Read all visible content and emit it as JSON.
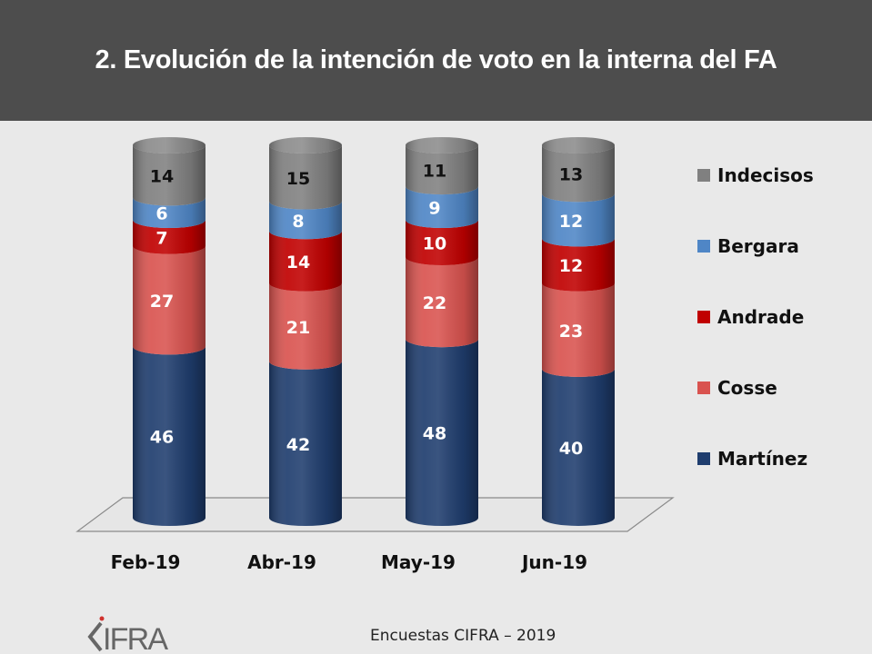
{
  "title": "2.  Evolución de la intención de voto en la interna del FA",
  "source": "Encuestas CIFRA – 2019",
  "logo_text": "CIFRA",
  "chart_data": {
    "type": "bar",
    "subtype": "stacked-3d-cylinder",
    "title": "2.  Evolución de la intención de voto en la interna del FA",
    "xlabel": "",
    "ylabel": "",
    "ylim": [
      0,
      100
    ],
    "grid": false,
    "legend_position": "right",
    "categories": [
      "Feb-19",
      "Abr-19",
      "May-19",
      "Jun-19"
    ],
    "series": [
      {
        "name": "Martínez",
        "color": "#1f3d6e",
        "label_color": "#ffffff",
        "values": [
          46,
          42,
          48,
          40
        ]
      },
      {
        "name": "Cosse",
        "color": "#d9534f",
        "label_color": "#ffffff",
        "values": [
          27,
          21,
          22,
          23
        ]
      },
      {
        "name": "Andrade",
        "color": "#c00000",
        "label_color": "#ffffff",
        "values": [
          7,
          14,
          10,
          12
        ]
      },
      {
        "name": "Bergara",
        "color": "#4f86c6",
        "label_color": "#ffffff",
        "values": [
          6,
          8,
          9,
          12
        ]
      },
      {
        "name": "Indecisos",
        "color": "#808080",
        "label_color": "#111111",
        "values": [
          14,
          15,
          11,
          13
        ]
      }
    ],
    "legend_order": [
      "Indecisos",
      "Bergara",
      "Andrade",
      "Cosse",
      "Martínez"
    ]
  }
}
